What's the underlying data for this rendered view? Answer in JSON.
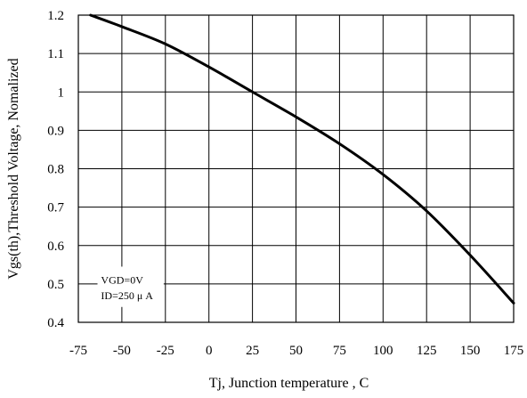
{
  "chart_data": {
    "type": "line",
    "title": "",
    "xlabel": "Tj, Junction temperature , C",
    "ylabel": "Vgs(th),Threshold Voltage, Nomalized",
    "xlim": [
      -75,
      175
    ],
    "ylim": [
      0.4,
      1.2
    ],
    "x_ticks": [
      -75,
      -50,
      -25,
      0,
      25,
      50,
      75,
      100,
      125,
      150,
      175
    ],
    "y_ticks": [
      0.4,
      0.5,
      0.6,
      0.7,
      0.8,
      0.9,
      1.0,
      1.1,
      1.2
    ],
    "x_tick_labels": [
      "-75",
      "-50",
      "-25",
      "0",
      "25",
      "50",
      "75",
      "100",
      "125",
      "150",
      "175"
    ],
    "y_tick_labels": [
      "0.4",
      "0.5",
      "0.6",
      "0.7",
      "0.8",
      "0.9",
      "1",
      "1.1",
      "1.2"
    ],
    "grid": true,
    "annotations": [
      "VGD=0V",
      "ID=250 μ A"
    ],
    "series": [
      {
        "x": [
          -68,
          -50,
          -25,
          0,
          25,
          50,
          75,
          100,
          125,
          150,
          175
        ],
        "y": [
          1.2,
          1.17,
          1.125,
          1.065,
          1.0,
          0.935,
          0.865,
          0.785,
          0.69,
          0.575,
          0.45
        ]
      }
    ]
  }
}
